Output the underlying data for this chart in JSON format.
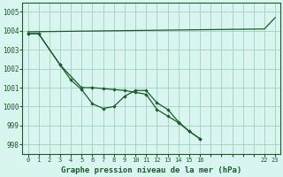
{
  "title": "Graphe pression niveau de la mer (hPa)",
  "background_color": "#d8f5f0",
  "grid_color": "#aad4c8",
  "line_color": "#1a5c2a",
  "ylim": [
    997.5,
    1005.5
  ],
  "yticks": [
    998,
    999,
    1000,
    1001,
    1002,
    1003,
    1004,
    1005
  ],
  "xlim": [
    -0.5,
    23.5
  ],
  "xtick_labels": [
    "0",
    "1",
    "2",
    "3",
    "4",
    "5",
    "6",
    "7",
    "8",
    "9",
    "10",
    "11",
    "12",
    "13",
    "14",
    "15",
    "16",
    "",
    "",
    "",
    "",
    "",
    "22",
    "23"
  ],
  "xtick_positions": [
    0,
    1,
    2,
    3,
    4,
    5,
    6,
    7,
    8,
    9,
    10,
    11,
    12,
    13,
    14,
    15,
    16,
    17,
    18,
    19,
    20,
    21,
    22,
    23
  ],
  "line1_x": [
    0,
    22,
    23
  ],
  "line1_y": [
    1003.95,
    1004.1,
    1004.7
  ],
  "line2_x": [
    0,
    1,
    3,
    5,
    6,
    7,
    8,
    9,
    10,
    11,
    12,
    13,
    14,
    15,
    16
  ],
  "line2_y": [
    1003.85,
    1003.85,
    1002.2,
    1001.0,
    1001.0,
    1000.95,
    1000.9,
    1000.85,
    1000.75,
    1000.65,
    999.85,
    999.5,
    999.15,
    998.7,
    998.3
  ],
  "line3_x": [
    0,
    1,
    3,
    4,
    5,
    6,
    7,
    8,
    9,
    10,
    11,
    12,
    13,
    14,
    15,
    16
  ],
  "line3_y": [
    1003.85,
    1003.85,
    1002.2,
    1001.4,
    1000.9,
    1000.15,
    999.9,
    1000.0,
    1000.55,
    1000.85,
    1000.85,
    1000.2,
    999.85,
    999.2,
    998.7,
    998.3
  ]
}
